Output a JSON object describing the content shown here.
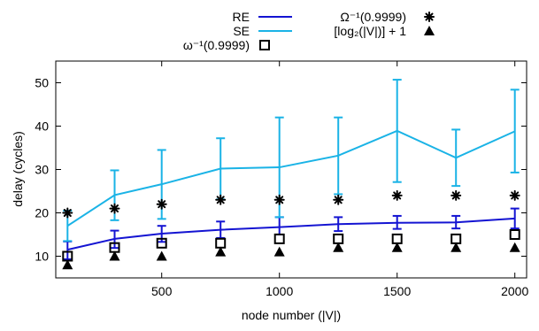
{
  "chart_data": {
    "type": "line",
    "xlabel": "node number (|V|)",
    "ylabel": "delay (cycles)",
    "xlim": [
      50,
      2050
    ],
    "ylim": [
      5,
      55
    ],
    "xticks": [
      500,
      1000,
      1500,
      2000
    ],
    "yticks": [
      10,
      20,
      30,
      40,
      50
    ],
    "grid": false,
    "legend_position": "top",
    "x": [
      100,
      300,
      500,
      750,
      1000,
      1250,
      1500,
      1750,
      2000
    ],
    "series": [
      {
        "name": "RE",
        "style": "line-errorbars",
        "color": "#1414d2",
        "values": [
          11.5,
          14.0,
          15.2,
          16.1,
          16.7,
          17.4,
          17.7,
          17.8,
          18.7
        ],
        "err_low": [
          9.3,
          11.9,
          13.3,
          14.2,
          15.0,
          15.8,
          16.3,
          16.4,
          16.4
        ],
        "err_high": [
          13.4,
          15.9,
          17.0,
          18.0,
          19.0,
          19.0,
          19.3,
          19.3,
          21.0
        ]
      },
      {
        "name": "SE",
        "style": "line-errorbars",
        "color": "#1ab3e6",
        "values": [
          17.0,
          24.1,
          26.6,
          30.2,
          30.5,
          33.2,
          38.9,
          32.7,
          38.8
        ],
        "err_low": [
          13.5,
          18.3,
          18.6,
          23.1,
          19.0,
          24.3,
          27.1,
          26.2,
          29.3
        ],
        "err_high": [
          20.5,
          29.8,
          34.5,
          37.2,
          42.0,
          42.0,
          50.7,
          39.2,
          48.4
        ]
      },
      {
        "name": "Ω⁻¹(0.9999)",
        "style": "star",
        "color": "#000000",
        "values": [
          20,
          21,
          22,
          23,
          23,
          23,
          24,
          24,
          24
        ]
      },
      {
        "name": "[log₂(|V|)] + 1",
        "style": "triangle",
        "color": "#000000",
        "values": [
          8,
          10,
          10,
          11,
          11,
          12,
          12,
          12,
          12
        ]
      },
      {
        "name": "ω⁻¹(0.9999)",
        "style": "open-square",
        "color": "#000000",
        "values": [
          10,
          12,
          13,
          13,
          14,
          14,
          14,
          14,
          15
        ]
      }
    ]
  }
}
